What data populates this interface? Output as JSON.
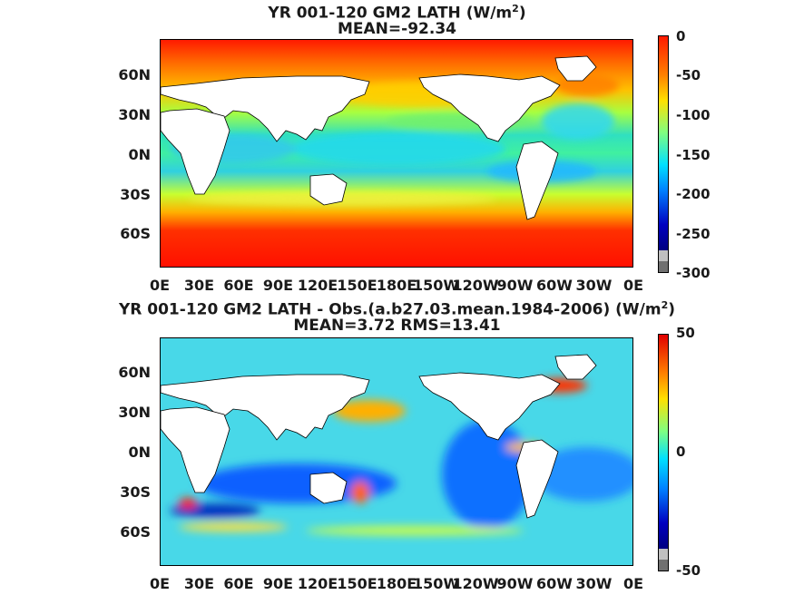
{
  "panels": [
    {
      "title_main": "YR 001-120 GM2  LATH (W/m",
      "title_sup": "2",
      "title_close": ")",
      "subtitle": "MEAN=-92.34",
      "lat_labels": [
        "60N",
        "30N",
        "0N",
        "30S",
        "60S"
      ],
      "lon_labels": [
        "0E",
        "30E",
        "60E",
        "90E",
        "120E",
        "150E",
        "180E",
        "150W",
        "120W",
        "90W",
        "60W",
        "30W",
        "0E"
      ],
      "colorbar_ticks": [
        "0",
        "-50",
        "-100",
        "-150",
        "-200",
        "-250",
        "-300"
      ],
      "colormap": "jet",
      "range": [
        -300,
        0
      ]
    },
    {
      "title_main": "YR 001-120 GM2 LATH - Obs.(a.b27.03.mean.1984-2006) (W/m",
      "title_sup": "2",
      "title_close": ")",
      "subtitle": "MEAN=3.72 RMS=13.41",
      "lat_labels": [
        "60N",
        "30N",
        "0N",
        "30S",
        "60S"
      ],
      "lon_labels": [
        "0E",
        "30E",
        "60E",
        "90E",
        "120E",
        "150E",
        "180E",
        "150W",
        "120W",
        "90W",
        "60W",
        "30W",
        "0E"
      ],
      "colorbar_ticks": [
        "50",
        "0",
        "-50"
      ],
      "colormap": "jet",
      "range": [
        -50,
        50
      ]
    }
  ],
  "colors": {
    "land": "#ffffff",
    "coast": "#000000",
    "missing": "#808080"
  }
}
